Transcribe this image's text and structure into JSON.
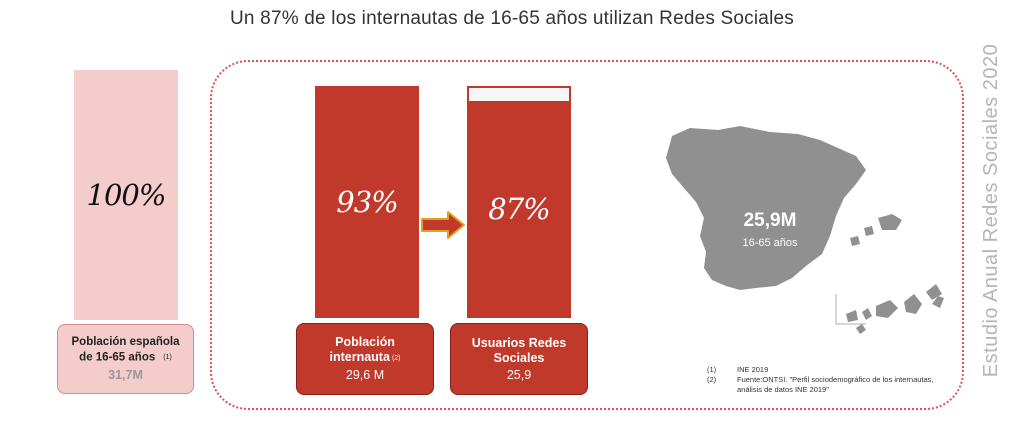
{
  "header": {
    "title": "Un 87% de los internautas de 16-65 años utilizan Redes Sociales"
  },
  "side": {
    "vertical_label": "Estudio Anual Redes Sociales 2020"
  },
  "chart_data": {
    "type": "bar",
    "categories": [
      "Población española de 16-65 años",
      "Población internauta",
      "Usuarios Redes Sociales"
    ],
    "values": [
      100,
      93,
      87
    ],
    "value_labels": [
      "100%",
      "93%",
      "87%"
    ],
    "ylim": [
      0,
      100
    ],
    "colors": [
      "#f5cccc",
      "#c0392b",
      "#c0392b"
    ]
  },
  "boxes": [
    {
      "line1": "Población española",
      "line2": "de 16-65 años",
      "ref": "(1)",
      "value": "31,7M"
    },
    {
      "line1": "Población",
      "line2": "internauta",
      "ref": "(2)",
      "value": "29,6 M"
    },
    {
      "line1": "Usuarios Redes",
      "line2": "Sociales",
      "ref": "",
      "value": "25,9"
    }
  ],
  "map": {
    "value": "25,9M",
    "subtitle": "16-65 años",
    "color": "#909090"
  },
  "footnotes": [
    {
      "num": "(1)",
      "text": "INE 2019"
    },
    {
      "num": "(2)",
      "text": "Fuente:ONTSI. \"Perfil sociodemográfico de los internautas, análisis de datos INE 2019\""
    }
  ]
}
